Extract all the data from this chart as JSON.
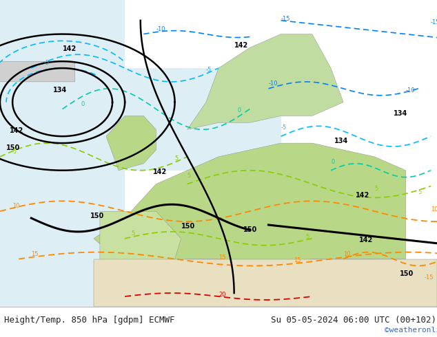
{
  "title_left": "Height/Temp. 850 hPa [gdpm] ECMWF",
  "title_right": "Su 05-05-2024 06:00 UTC (00+102)",
  "credit": "©weatheronline.co.uk",
  "bg_color_land_north": "#d0e8b0",
  "bg_color_land_south": "#e8e8e8",
  "bg_color_sea": "#c8e8f0",
  "text_color_left": "#222222",
  "text_color_right": "#222222",
  "credit_color": "#3366cc",
  "bottom_bar_color": "#f0f0f0",
  "bottom_bar_height": 0.045,
  "title_fontsize": 9,
  "credit_fontsize": 8
}
